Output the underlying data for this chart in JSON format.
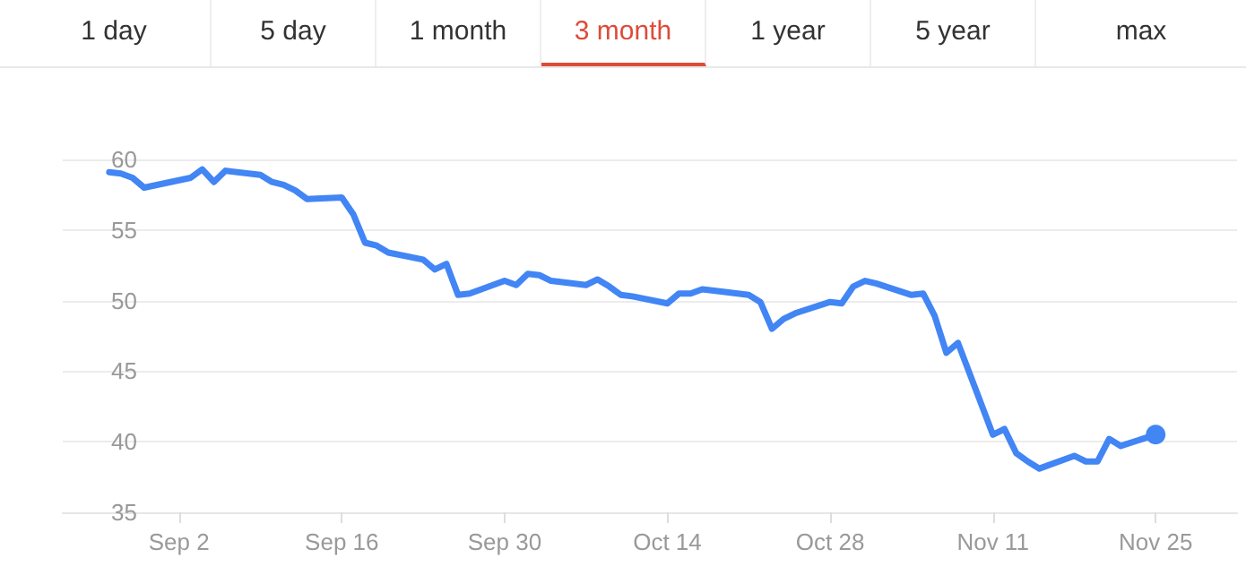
{
  "chart_data": {
    "type": "line",
    "annotations": [
      "1 day",
      "5 day",
      "1 month",
      "3 month",
      "1 year",
      "5 year",
      "max"
    ],
    "x": [
      "--08-27",
      "--08-28",
      "--08-29",
      "--08-30",
      "--09-03",
      "--09-04",
      "--09-05",
      "--09-06",
      "--09-09",
      "--09-10",
      "--09-11",
      "--09-12",
      "--09-13",
      "--09-16",
      "--09-17",
      "--09-18",
      "--09-19",
      "--09-20",
      "--09-23",
      "--09-24",
      "--09-25",
      "--09-26",
      "--09-27",
      "--09-30",
      "--10-01",
      "--10-02",
      "--10-03",
      "--10-04",
      "--10-07",
      "--10-08",
      "--10-09",
      "--10-10",
      "--10-11",
      "--10-14",
      "--10-15",
      "--10-16",
      "--10-17",
      "--10-18",
      "--10-21",
      "--10-22",
      "--10-23",
      "--10-24",
      "--10-25",
      "--10-28",
      "--10-29",
      "--10-30",
      "--10-31",
      "--11-01",
      "--11-04",
      "--11-05",
      "--11-06",
      "--11-07",
      "--11-08",
      "--11-11",
      "--11-12",
      "--11-13",
      "--11-14",
      "--11-15",
      "--11-18",
      "--11-19",
      "--11-20",
      "--11-21",
      "--11-22",
      "--11-25"
    ],
    "series": [
      {
        "color": "#4285f4",
        "values": [
          59.1,
          59.0,
          58.7,
          58.0,
          58.7,
          59.3,
          58.4,
          59.2,
          58.9,
          58.4,
          58.2,
          57.8,
          57.2,
          57.3,
          56.1,
          54.1,
          53.9,
          53.4,
          52.9,
          52.2,
          52.6,
          50.4,
          50.5,
          51.4,
          51.1,
          51.9,
          51.8,
          51.4,
          51.1,
          51.5,
          51.0,
          50.4,
          50.3,
          49.8,
          50.5,
          50.5,
          50.8,
          50.7,
          50.4,
          49.9,
          48.0,
          48.7,
          49.1,
          49.9,
          49.8,
          51.0,
          51.4,
          51.2,
          50.4,
          50.5,
          48.9,
          46.3,
          47.0,
          40.5,
          40.9,
          39.2,
          38.6,
          38.1,
          39.0,
          38.6,
          38.6,
          40.2,
          39.7,
          40.5
        ]
      }
    ],
    "xlim": [
      "--08-23",
      "--12-02"
    ],
    "xticks": [
      {
        "value": "--09-02",
        "label": "Sep 2"
      },
      {
        "value": "--09-16",
        "label": "Sep 16"
      },
      {
        "value": "--09-30",
        "label": "Sep 30"
      },
      {
        "value": "--10-14",
        "label": "Oct 14"
      },
      {
        "value": "--10-28",
        "label": "Oct 28"
      },
      {
        "value": "--11-11",
        "label": "Nov 11"
      },
      {
        "value": "--11-25",
        "label": "Nov 25"
      }
    ],
    "ylim": [
      35,
      60
    ],
    "yticks": [
      35,
      40,
      45,
      50,
      55,
      60
    ],
    "grid": "y"
  }
}
